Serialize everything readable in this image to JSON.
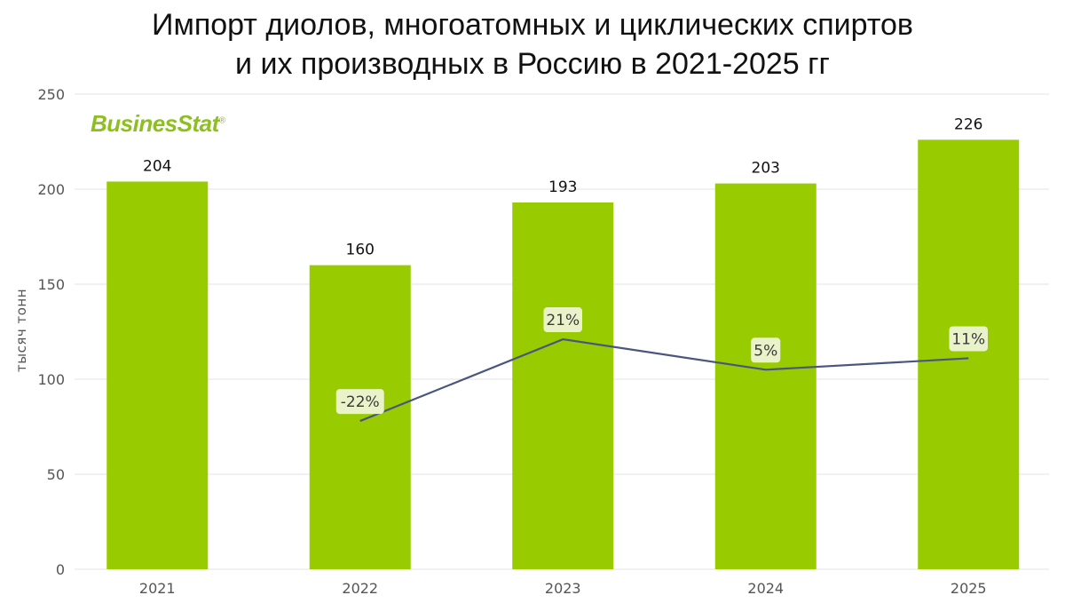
{
  "title": {
    "line1": "Импорт диолов, многоатомных и циклических спиртов",
    "line2": "и их производных в Россию в 2021-2025 гг"
  },
  "logo": {
    "text": "BusinesStat",
    "mark": "®"
  },
  "colors": {
    "bar": "#99cc00",
    "line": "#4a5580",
    "grid": "#e3e3e3",
    "growth_label_bg": "#e9f2c9"
  },
  "chart_data": {
    "type": "bar",
    "title": "Импорт диолов, многоатомных и циклических спиртов и их производных в Россию в 2021-2025 гг",
    "xlabel": "",
    "ylabel": "тысяч тонн",
    "categories": [
      "2021",
      "2022",
      "2023",
      "2024",
      "2025"
    ],
    "values": [
      204,
      160,
      193,
      203,
      226
    ],
    "value_labels": [
      "204",
      "160",
      "193",
      "203",
      "226"
    ],
    "ylim": [
      0,
      250
    ],
    "yticks": [
      0,
      50,
      100,
      150,
      200,
      250
    ],
    "grid": true,
    "growth": {
      "type": "line",
      "categories": [
        "2022",
        "2023",
        "2024",
        "2025"
      ],
      "values_pct": [
        -22,
        21,
        5,
        11
      ],
      "labels": [
        "-22%",
        "21%",
        "5%",
        "11%"
      ]
    }
  }
}
